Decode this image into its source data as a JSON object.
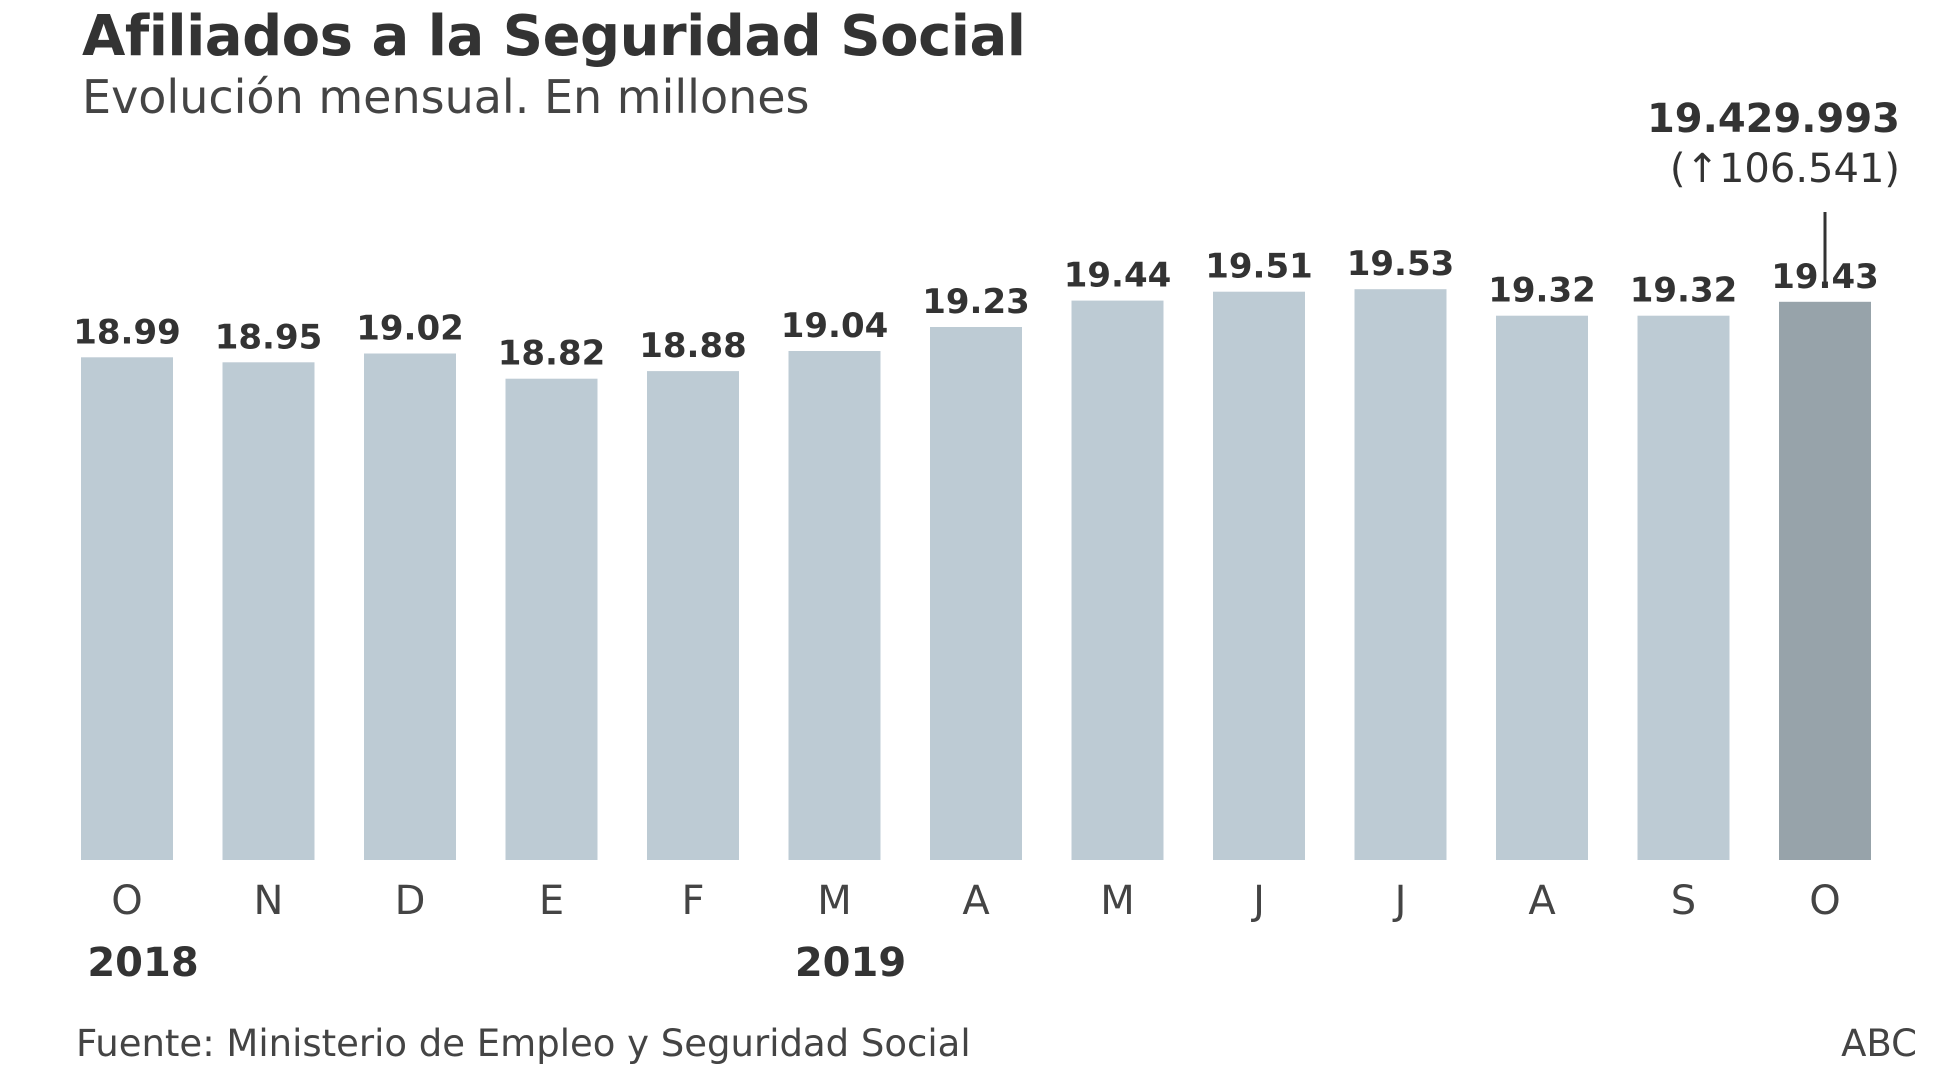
{
  "header": {
    "title": "Afiliados a la Seguridad Social",
    "subtitle": "Evolución mensual. En millones"
  },
  "callout": {
    "value": "19.429.993",
    "delta": "(↑106.541)"
  },
  "footer": {
    "source": "Fuente: Ministerio de Empleo y Seguridad Social",
    "credit": "ABC"
  },
  "colors": {
    "bar": "#bdcbd4",
    "highlight_bar": "#97a3aa",
    "text": "#333333"
  },
  "chart_data": {
    "type": "bar",
    "title": "Afiliados a la Seguridad Social",
    "subtitle": "Evolución mensual. En millones",
    "categories": [
      "O",
      "N",
      "D",
      "E",
      "F",
      "M",
      "A",
      "M",
      "J",
      "J",
      "A",
      "S",
      "O"
    ],
    "values": [
      18.99,
      18.95,
      19.02,
      18.82,
      18.88,
      19.04,
      19.23,
      19.44,
      19.51,
      19.53,
      19.32,
      19.32,
      19.43
    ],
    "data_labels": [
      "18.99",
      "18.95",
      "19.02",
      "18.82",
      "18.88",
      "19.04",
      "19.23",
      "19.44",
      "19.51",
      "19.53",
      "19.32",
      "19.32",
      "19.43"
    ],
    "year_labels": [
      {
        "index": 0,
        "label": "2018"
      },
      {
        "index": 5,
        "label": "2019"
      }
    ],
    "highlight_index": 12,
    "ylim": [
      15.0,
      20.0
    ],
    "grid": false,
    "xlabel": "",
    "ylabel": ""
  }
}
